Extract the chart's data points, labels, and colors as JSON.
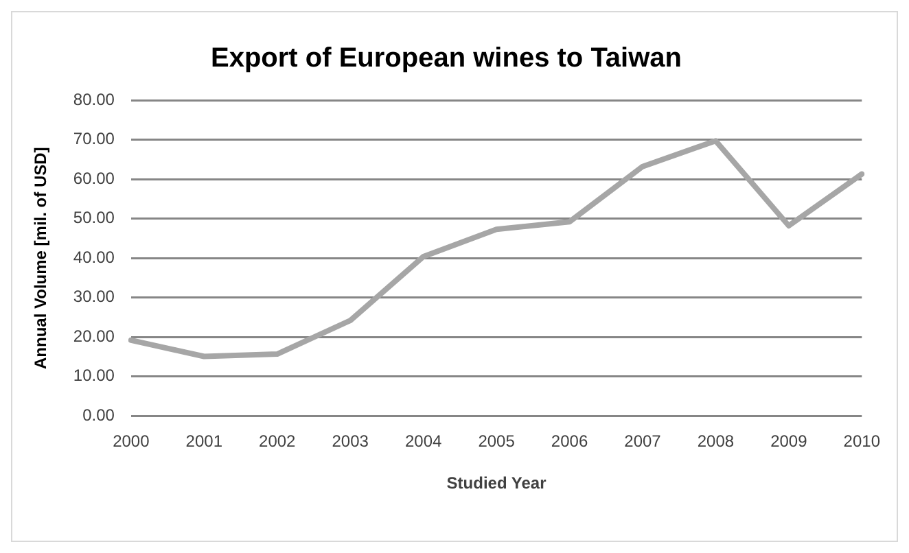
{
  "chart_data": {
    "type": "line",
    "title": "Export of European wines to Taiwan",
    "xlabel": "Studied Year",
    "ylabel": "Annual Volume [mil. of USD]",
    "categories": [
      "2000",
      "2001",
      "2002",
      "2003",
      "2004",
      "2005",
      "2006",
      "2007",
      "2008",
      "2009",
      "2010"
    ],
    "series": [
      {
        "color": "#a6a6a6",
        "values": [
          19.2,
          15.1,
          15.7,
          24.2,
          40.4,
          47.3,
          49.2,
          63.2,
          69.7,
          48.2,
          61.3
        ]
      }
    ],
    "ylim": [
      0,
      80
    ],
    "yticks": [
      {
        "value": 0,
        "label": "0.00"
      },
      {
        "value": 10,
        "label": "10.00"
      },
      {
        "value": 20,
        "label": "20.00"
      },
      {
        "value": 30,
        "label": "30.00"
      },
      {
        "value": 40,
        "label": "40.00"
      },
      {
        "value": 50,
        "label": "50.00"
      },
      {
        "value": 60,
        "label": "60.00"
      },
      {
        "value": 70,
        "label": "70.00"
      },
      {
        "value": 80,
        "label": "80.00"
      }
    ],
    "grid": "y",
    "legend": false,
    "marker": "none",
    "line_style": "solid"
  }
}
